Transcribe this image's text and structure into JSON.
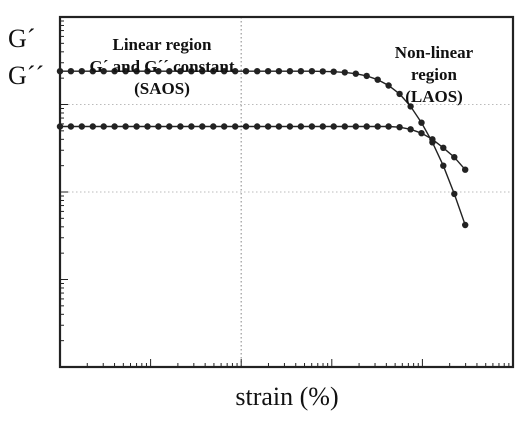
{
  "chart_data": {
    "type": "line",
    "xscale": "log",
    "yscale": "log",
    "xlim": [
      0.01,
      1000
    ],
    "ylim": [
      1,
      10000
    ],
    "grid": "dotted",
    "xlabel": "strain (%)",
    "ylabel_lines": [
      "G´",
      "G´´"
    ],
    "annotations": {
      "left": [
        "Linear region",
        "G´ and G´´ constant",
        "(SAOS)"
      ],
      "right": [
        "Non-linear",
        "region",
        "(LAOS)"
      ]
    },
    "series": [
      {
        "x": [
          0.01,
          0.0132,
          0.0174,
          0.023,
          0.0304,
          0.0401,
          0.053,
          0.07,
          0.0925,
          0.122,
          0.161,
          0.213,
          0.282,
          0.372,
          0.492,
          0.65,
          0.859,
          1.13,
          1.5,
          1.98,
          2.61,
          3.45,
          4.56,
          6.03,
          7.96,
          10.5,
          13.9,
          18.4,
          24.3,
          32.1,
          42.4,
          56.0,
          74.0,
          97.8,
          129.0,
          170.0,
          225.0,
          297.0
        ],
        "values": [
          2400,
          2400,
          2400,
          2400,
          2400,
          2400,
          2400,
          2400,
          2400,
          2400,
          2400,
          2400,
          2400,
          2400,
          2400,
          2400,
          2400,
          2400,
          2400,
          2400,
          2400,
          2400,
          2400,
          2400,
          2390,
          2370,
          2330,
          2250,
          2120,
          1920,
          1650,
          1320,
          950,
          620,
          370,
          200,
          95,
          42
        ]
      },
      {
        "x": [
          0.01,
          0.0132,
          0.0174,
          0.023,
          0.0304,
          0.0401,
          0.053,
          0.07,
          0.0925,
          0.122,
          0.161,
          0.213,
          0.282,
          0.372,
          0.492,
          0.65,
          0.859,
          1.13,
          1.5,
          1.98,
          2.61,
          3.45,
          4.56,
          6.03,
          7.96,
          10.5,
          13.9,
          18.4,
          24.3,
          32.1,
          42.4,
          56.0,
          74.0,
          97.8,
          129.0,
          170.0,
          225.0,
          297.0
        ],
        "values": [
          560,
          560,
          560,
          560,
          560,
          560,
          560,
          560,
          560,
          560,
          560,
          560,
          560,
          560,
          560,
          560,
          560,
          560,
          560,
          560,
          560,
          560,
          560,
          560,
          560,
          560,
          560,
          560,
          560,
          560,
          560,
          550,
          520,
          470,
          400,
          320,
          250,
          180
        ]
      }
    ]
  }
}
